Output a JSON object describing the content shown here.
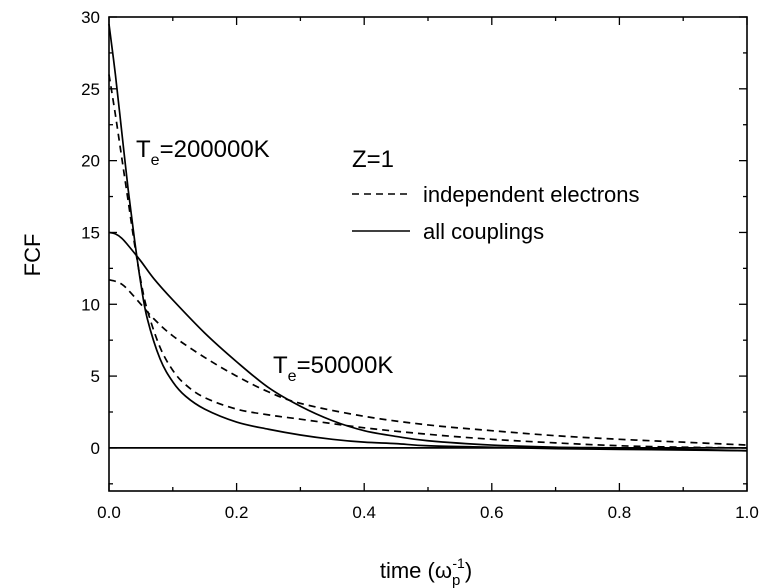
{
  "chart_data": {
    "type": "line",
    "xlabel": "time (ω",
    "xlabel_sub": "p",
    "xlabel_sup": "-1",
    "xlabel_close": ")",
    "ylabel": "FCF",
    "xlim": [
      0.0,
      1.0
    ],
    "ylim": [
      -3,
      30
    ],
    "xticks": [
      "0.0",
      "0.2",
      "0.4",
      "0.6",
      "0.8",
      "1.0"
    ],
    "yticks": [
      "0",
      "5",
      "10",
      "15",
      "20",
      "25",
      "30"
    ],
    "legend": {
      "title": "Z=1",
      "entries": [
        {
          "label": "independent electrons",
          "style": "dashed"
        },
        {
          "label": "all couplings",
          "style": "solid"
        }
      ]
    },
    "annotations": [
      {
        "main": "T",
        "sub": "e",
        "rest": "=200000K"
      },
      {
        "main": "T",
        "sub": "e",
        "rest": "=50000K"
      }
    ],
    "series": [
      {
        "style": "dashed",
        "x": [
          0,
          0.01,
          0.02,
          0.03,
          0.04,
          0.05,
          0.06,
          0.08,
          0.1,
          0.12,
          0.15,
          0.2,
          0.25,
          0.3,
          0.4,
          0.5,
          0.6,
          0.7,
          0.8,
          0.9,
          1.0
        ],
        "y": [
          26.0,
          23.2,
          20.2,
          17.2,
          14.2,
          11.6,
          9.6,
          7.0,
          5.4,
          4.4,
          3.5,
          2.7,
          2.3,
          2.0,
          1.4,
          0.95,
          0.6,
          0.35,
          0.15,
          0.05,
          0.0
        ]
      },
      {
        "style": "solid",
        "x": [
          0,
          0.01,
          0.02,
          0.03,
          0.04,
          0.05,
          0.06,
          0.08,
          0.1,
          0.12,
          0.15,
          0.2,
          0.25,
          0.3,
          0.35,
          0.4,
          0.45,
          0.5,
          0.6,
          0.7,
          0.8,
          0.9,
          1.0
        ],
        "y": [
          29.5,
          26.0,
          22.0,
          18.0,
          14.5,
          11.4,
          9.0,
          6.2,
          4.6,
          3.6,
          2.7,
          1.8,
          1.3,
          0.9,
          0.6,
          0.4,
          0.3,
          0.15,
          0.05,
          -0.05,
          -0.1,
          -0.15,
          -0.2
        ]
      },
      {
        "style": "dashed",
        "x": [
          0,
          0.01,
          0.02,
          0.03,
          0.05,
          0.07,
          0.1,
          0.15,
          0.2,
          0.25,
          0.3,
          0.4,
          0.5,
          0.6,
          0.7,
          0.8,
          0.9,
          1.0
        ],
        "y": [
          11.7,
          11.6,
          11.4,
          11.0,
          10.0,
          9.0,
          7.8,
          6.3,
          5.0,
          3.9,
          3.1,
          2.2,
          1.6,
          1.2,
          0.85,
          0.6,
          0.4,
          0.2
        ]
      },
      {
        "style": "solid",
        "x": [
          0,
          0.01,
          0.02,
          0.03,
          0.05,
          0.07,
          0.1,
          0.15,
          0.2,
          0.25,
          0.3,
          0.35,
          0.4,
          0.45,
          0.5,
          0.6,
          0.7,
          0.8,
          0.9,
          1.0
        ],
        "y": [
          15.0,
          14.9,
          14.6,
          14.1,
          13.0,
          11.8,
          10.3,
          8.0,
          6.0,
          4.2,
          2.9,
          1.9,
          1.2,
          0.8,
          0.5,
          0.2,
          0.05,
          0.0,
          -0.1,
          -0.2
        ]
      },
      {
        "style": "solid",
        "x": [
          0,
          1.0
        ],
        "y": [
          0,
          0
        ]
      }
    ]
  }
}
